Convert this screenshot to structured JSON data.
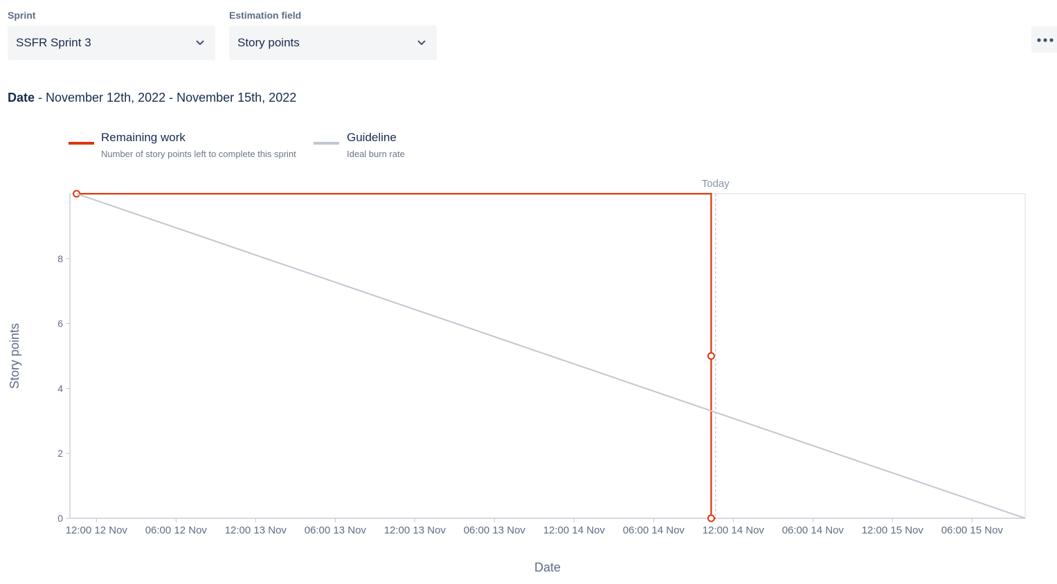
{
  "controls": {
    "sprint_label": "Sprint",
    "sprint_value": "SSFR Sprint 3",
    "estimation_label": "Estimation field",
    "estimation_value": "Story points"
  },
  "date_header": {
    "label": "Date",
    "range": " - November 12th, 2022 - November 15th, 2022"
  },
  "legend": [
    {
      "title": "Remaining work",
      "description": "Number of story points left to complete this sprint",
      "color": "#de350b"
    },
    {
      "title": "Guideline",
      "description": "Ideal burn rate",
      "color": "#c1c7d0"
    }
  ],
  "icons": {
    "more": "more-horizontal-icon",
    "chevron": "chevron-down-icon"
  },
  "chart_data": {
    "type": "line",
    "xlabel": "Date",
    "ylabel": "Story points",
    "ylim": [
      0,
      10
    ],
    "yticks": [
      0,
      2,
      4,
      6,
      8
    ],
    "xlim": [
      "2022-11-12T10:00",
      "2022-11-15T10:00"
    ],
    "x_tick_values": [
      "2022-11-12T12:00",
      "2022-11-12T18:00",
      "2022-11-13T00:00",
      "2022-11-13T06:00",
      "2022-11-13T12:00",
      "2022-11-13T18:00",
      "2022-11-14T00:00",
      "2022-11-14T06:00",
      "2022-11-14T12:00",
      "2022-11-14T18:00",
      "2022-11-15T00:00",
      "2022-11-15T06:00"
    ],
    "x_tick_labels": [
      "12:00 12 Nov",
      "06:00 12 Nov",
      "12:00 13 Nov",
      "06:00 13 Nov",
      "12:00 13 Nov",
      "06:00 13 Nov",
      "12:00 14 Nov",
      "06:00 14 Nov",
      "12:00 14 Nov",
      "06:00 14 Nov",
      "12:00 15 Nov",
      "06:00 15 Nov"
    ],
    "today": {
      "label": "Today",
      "x": "2022-11-14T10:40"
    },
    "series": [
      {
        "name": "Remaining work",
        "color": "#de350b",
        "step": true,
        "points": [
          {
            "x": "2022-11-12T10:30",
            "y": 10,
            "marker": true
          },
          {
            "x": "2022-11-14T10:20",
            "y": 10,
            "marker": false
          },
          {
            "x": "2022-11-14T10:20",
            "y": 5,
            "marker": true
          },
          {
            "x": "2022-11-14T10:20",
            "y": 0,
            "marker": true
          },
          {
            "x": "2022-11-14T10:40",
            "y": 0,
            "marker": false
          }
        ]
      },
      {
        "name": "Guideline",
        "color": "#c1c7d0",
        "step": false,
        "points": [
          {
            "x": "2022-11-12T10:30",
            "y": 10
          },
          {
            "x": "2022-11-15T10:00",
            "y": 0
          }
        ]
      }
    ]
  }
}
